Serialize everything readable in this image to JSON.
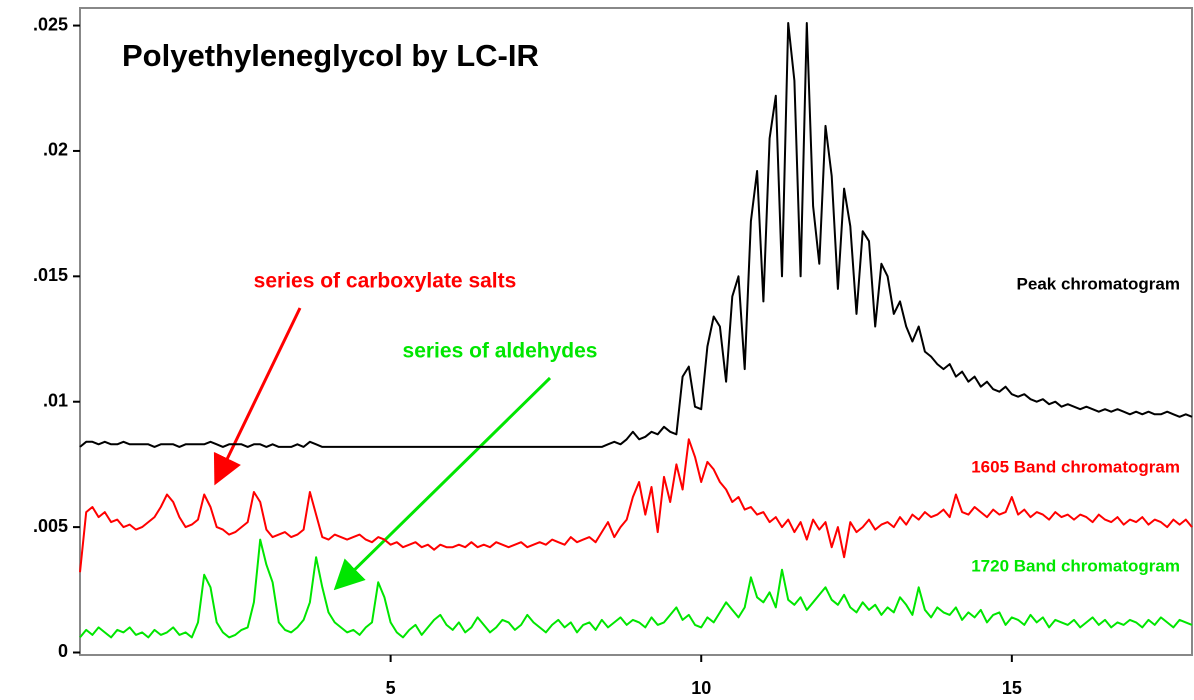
{
  "chart_data": {
    "type": "line",
    "title": "Polyethyleneglycol by LC-IR",
    "annotations": [
      {
        "text": "series of carboxylate salts",
        "color": "#ff0000"
      },
      {
        "text": "series of aldehydes",
        "color": "#00e600"
      }
    ],
    "xlim": [
      0,
      17.9
    ],
    "ylim": [
      -0.0001,
      0.0257
    ],
    "xticks": [
      5,
      10,
      15
    ],
    "yticks": [
      0,
      {
        "value": 0.005,
        "label": ".005"
      },
      {
        "value": 0.01,
        "label": ".01"
      },
      {
        "value": 0.015,
        "label": ".015"
      },
      {
        "value": 0.02,
        "label": ".02"
      },
      {
        "value": 0.025,
        "label": ".025"
      }
    ],
    "x": [
      0,
      0.1,
      0.2,
      0.3,
      0.4,
      0.5,
      0.6,
      0.7,
      0.8,
      0.9,
      1,
      1.1,
      1.2,
      1.3,
      1.4,
      1.5,
      1.6,
      1.7,
      1.8,
      1.9,
      2,
      2.1,
      2.2,
      2.3,
      2.4,
      2.5,
      2.6,
      2.7,
      2.8,
      2.9,
      3,
      3.1,
      3.2,
      3.3,
      3.4,
      3.5,
      3.6,
      3.7,
      3.8,
      3.9,
      4,
      4.1,
      4.2,
      4.3,
      4.4,
      4.5,
      4.6,
      4.7,
      4.8,
      4.9,
      5,
      5.1,
      5.2,
      5.3,
      5.4,
      5.5,
      5.6,
      5.7,
      5.8,
      5.9,
      6,
      6.1,
      6.2,
      6.3,
      6.4,
      6.5,
      6.6,
      6.7,
      6.8,
      6.9,
      7,
      7.1,
      7.2,
      7.3,
      7.4,
      7.5,
      7.6,
      7.7,
      7.8,
      7.9,
      8,
      8.1,
      8.2,
      8.3,
      8.4,
      8.5,
      8.6,
      8.7,
      8.8,
      8.9,
      9,
      9.1,
      9.2,
      9.3,
      9.4,
      9.5,
      9.6,
      9.7,
      9.8,
      9.9,
      10,
      10.1,
      10.2,
      10.3,
      10.4,
      10.5,
      10.6,
      10.7,
      10.8,
      10.9,
      11,
      11.1,
      11.2,
      11.3,
      11.4,
      11.5,
      11.6,
      11.7,
      11.8,
      11.9,
      12,
      12.1,
      12.2,
      12.3,
      12.4,
      12.5,
      12.6,
      12.7,
      12.8,
      12.9,
      13,
      13.1,
      13.2,
      13.3,
      13.4,
      13.5,
      13.6,
      13.7,
      13.8,
      13.9,
      14,
      14.1,
      14.2,
      14.3,
      14.4,
      14.5,
      14.6,
      14.7,
      14.8,
      14.9,
      15,
      15.1,
      15.2,
      15.3,
      15.4,
      15.5,
      15.6,
      15.7,
      15.8,
      15.9,
      16,
      16.1,
      16.2,
      16.3,
      16.4,
      16.5,
      16.6,
      16.7,
      16.8,
      16.9,
      17,
      17.1,
      17.2,
      17.3,
      17.4,
      17.5,
      17.6,
      17.7,
      17.8,
      17.9
    ],
    "series": [
      {
        "name": "Peak chromatogram",
        "color": "#000000",
        "values": [
          0.0082,
          0.0084,
          0.0084,
          0.0083,
          0.0084,
          0.0083,
          0.0083,
          0.0084,
          0.0083,
          0.0083,
          0.0083,
          0.0083,
          0.0082,
          0.0083,
          0.0083,
          0.0083,
          0.0082,
          0.0083,
          0.0083,
          0.0083,
          0.0083,
          0.0084,
          0.0083,
          0.0082,
          0.0083,
          0.0083,
          0.0083,
          0.0082,
          0.0083,
          0.0083,
          0.0082,
          0.0083,
          0.0082,
          0.0082,
          0.0082,
          0.0083,
          0.0082,
          0.0084,
          0.0083,
          0.0082,
          0.0082,
          0.0082,
          0.0082,
          0.0082,
          0.0082,
          0.0082,
          0.0082,
          0.0082,
          0.0082,
          0.0082,
          0.0082,
          0.0082,
          0.0082,
          0.0082,
          0.0082,
          0.0082,
          0.0082,
          0.0082,
          0.0082,
          0.0082,
          0.0082,
          0.0082,
          0.0082,
          0.0082,
          0.0082,
          0.0082,
          0.0082,
          0.0082,
          0.0082,
          0.0082,
          0.0082,
          0.0082,
          0.0082,
          0.0082,
          0.0082,
          0.0082,
          0.0082,
          0.0082,
          0.0082,
          0.0082,
          0.0082,
          0.0082,
          0.0082,
          0.0082,
          0.0082,
          0.0083,
          0.0084,
          0.0083,
          0.0085,
          0.0088,
          0.0085,
          0.0086,
          0.0088,
          0.0087,
          0.009,
          0.0088,
          0.0087,
          0.011,
          0.0114,
          0.0098,
          0.0097,
          0.0122,
          0.0134,
          0.013,
          0.0108,
          0.0142,
          0.015,
          0.0113,
          0.0172,
          0.0192,
          0.014,
          0.0205,
          0.0222,
          0.015,
          0.0251,
          0.0228,
          0.015,
          0.0251,
          0.0178,
          0.0155,
          0.021,
          0.019,
          0.0145,
          0.0185,
          0.017,
          0.0135,
          0.0168,
          0.0164,
          0.013,
          0.0155,
          0.015,
          0.0135,
          0.014,
          0.013,
          0.0124,
          0.013,
          0.012,
          0.0118,
          0.0115,
          0.0113,
          0.0115,
          0.011,
          0.0112,
          0.0108,
          0.011,
          0.0106,
          0.0108,
          0.0105,
          0.0104,
          0.0106,
          0.0103,
          0.0102,
          0.0103,
          0.0101,
          0.01,
          0.0101,
          0.0099,
          0.01,
          0.0098,
          0.0099,
          0.0098,
          0.0097,
          0.0098,
          0.0097,
          0.0096,
          0.0097,
          0.0096,
          0.0097,
          0.0096,
          0.0095,
          0.0096,
          0.0095,
          0.0096,
          0.0095,
          0.0095,
          0.0096,
          0.0095,
          0.0094,
          0.0095,
          0.0094
        ]
      },
      {
        "name": "1605 Band chromatogram",
        "color": "#ff0000",
        "values": [
          0.0032,
          0.0056,
          0.0058,
          0.0054,
          0.0056,
          0.0052,
          0.0053,
          0.005,
          0.0051,
          0.0049,
          0.005,
          0.0052,
          0.0054,
          0.0058,
          0.0063,
          0.006,
          0.0054,
          0.005,
          0.0051,
          0.0053,
          0.0063,
          0.0058,
          0.005,
          0.0049,
          0.0047,
          0.0048,
          0.005,
          0.0052,
          0.0064,
          0.006,
          0.0049,
          0.0046,
          0.0047,
          0.0048,
          0.0046,
          0.0047,
          0.0049,
          0.0064,
          0.0055,
          0.0046,
          0.0045,
          0.0047,
          0.0046,
          0.0045,
          0.0046,
          0.0047,
          0.0045,
          0.0044,
          0.0046,
          0.0045,
          0.0043,
          0.0044,
          0.0042,
          0.0043,
          0.0044,
          0.0042,
          0.0043,
          0.0041,
          0.0043,
          0.0042,
          0.0042,
          0.0043,
          0.0042,
          0.0044,
          0.0042,
          0.0043,
          0.0042,
          0.0044,
          0.0043,
          0.0042,
          0.0043,
          0.0044,
          0.0042,
          0.0043,
          0.0044,
          0.0043,
          0.0045,
          0.0044,
          0.0043,
          0.0046,
          0.0044,
          0.0045,
          0.0046,
          0.0044,
          0.0048,
          0.0052,
          0.0046,
          0.005,
          0.0053,
          0.0062,
          0.0068,
          0.0055,
          0.0066,
          0.0048,
          0.007,
          0.006,
          0.0075,
          0.0065,
          0.0085,
          0.0078,
          0.0068,
          0.0076,
          0.0073,
          0.0068,
          0.0065,
          0.006,
          0.0062,
          0.0057,
          0.0058,
          0.0055,
          0.0056,
          0.0052,
          0.0054,
          0.005,
          0.0053,
          0.0048,
          0.0052,
          0.0045,
          0.0053,
          0.0049,
          0.0052,
          0.0042,
          0.005,
          0.0038,
          0.0052,
          0.0048,
          0.005,
          0.0053,
          0.0049,
          0.0051,
          0.0052,
          0.005,
          0.0054,
          0.0051,
          0.0055,
          0.0053,
          0.0056,
          0.0054,
          0.0055,
          0.0057,
          0.0054,
          0.0063,
          0.0056,
          0.0055,
          0.0058,
          0.0056,
          0.0054,
          0.0057,
          0.0055,
          0.0056,
          0.0062,
          0.0055,
          0.0057,
          0.0054,
          0.0056,
          0.0055,
          0.0053,
          0.0056,
          0.0054,
          0.0055,
          0.0053,
          0.0055,
          0.0054,
          0.0052,
          0.0055,
          0.0053,
          0.0052,
          0.0054,
          0.0051,
          0.0053,
          0.0052,
          0.0054,
          0.0051,
          0.0053,
          0.0052,
          0.005,
          0.0053,
          0.0051,
          0.0053,
          0.005
        ]
      },
      {
        "name": "1720 Band chromatogram",
        "color": "#00e600",
        "values": [
          0.0006,
          0.0009,
          0.0007,
          0.001,
          0.0008,
          0.0006,
          0.0009,
          0.0008,
          0.001,
          0.0007,
          0.0008,
          0.0006,
          0.0009,
          0.0007,
          0.0008,
          0.001,
          0.0007,
          0.0008,
          0.0006,
          0.0012,
          0.0031,
          0.0026,
          0.0012,
          0.0008,
          0.0006,
          0.0007,
          0.0009,
          0.001,
          0.002,
          0.0045,
          0.0035,
          0.0028,
          0.0012,
          0.0009,
          0.0008,
          0.001,
          0.0013,
          0.002,
          0.0038,
          0.0026,
          0.0016,
          0.0012,
          0.001,
          0.0008,
          0.0009,
          0.0007,
          0.001,
          0.0012,
          0.0028,
          0.0022,
          0.0012,
          0.0008,
          0.0006,
          0.0009,
          0.0011,
          0.0007,
          0.001,
          0.0013,
          0.0015,
          0.0011,
          0.0009,
          0.0012,
          0.0008,
          0.001,
          0.0014,
          0.0011,
          0.0008,
          0.001,
          0.0013,
          0.0012,
          0.0009,
          0.0011,
          0.0015,
          0.0012,
          0.001,
          0.0008,
          0.0011,
          0.0013,
          0.001,
          0.0012,
          0.0008,
          0.0011,
          0.0012,
          0.0009,
          0.0013,
          0.001,
          0.0012,
          0.0014,
          0.0011,
          0.0013,
          0.0012,
          0.001,
          0.0014,
          0.0011,
          0.0012,
          0.0015,
          0.0018,
          0.0013,
          0.0015,
          0.0011,
          0.001,
          0.0014,
          0.0012,
          0.0016,
          0.002,
          0.0017,
          0.0014,
          0.0018,
          0.003,
          0.0022,
          0.002,
          0.0024,
          0.0018,
          0.0033,
          0.0021,
          0.0019,
          0.0022,
          0.0017,
          0.002,
          0.0023,
          0.0026,
          0.0021,
          0.0019,
          0.0023,
          0.0018,
          0.0016,
          0.002,
          0.0017,
          0.0019,
          0.0015,
          0.0018,
          0.0016,
          0.0022,
          0.0019,
          0.0015,
          0.0026,
          0.0017,
          0.0014,
          0.0018,
          0.0016,
          0.0015,
          0.0018,
          0.0013,
          0.0016,
          0.0014,
          0.0017,
          0.0012,
          0.0015,
          0.0016,
          0.0011,
          0.0014,
          0.0013,
          0.0011,
          0.0015,
          0.0012,
          0.0014,
          0.001,
          0.0013,
          0.0012,
          0.0011,
          0.0013,
          0.001,
          0.0012,
          0.0014,
          0.0011,
          0.0013,
          0.001,
          0.0012,
          0.0011,
          0.0013,
          0.0012,
          0.001,
          0.0013,
          0.0011,
          0.0014,
          0.0012,
          0.001,
          0.0013,
          0.0012,
          0.0011
        ]
      }
    ]
  }
}
